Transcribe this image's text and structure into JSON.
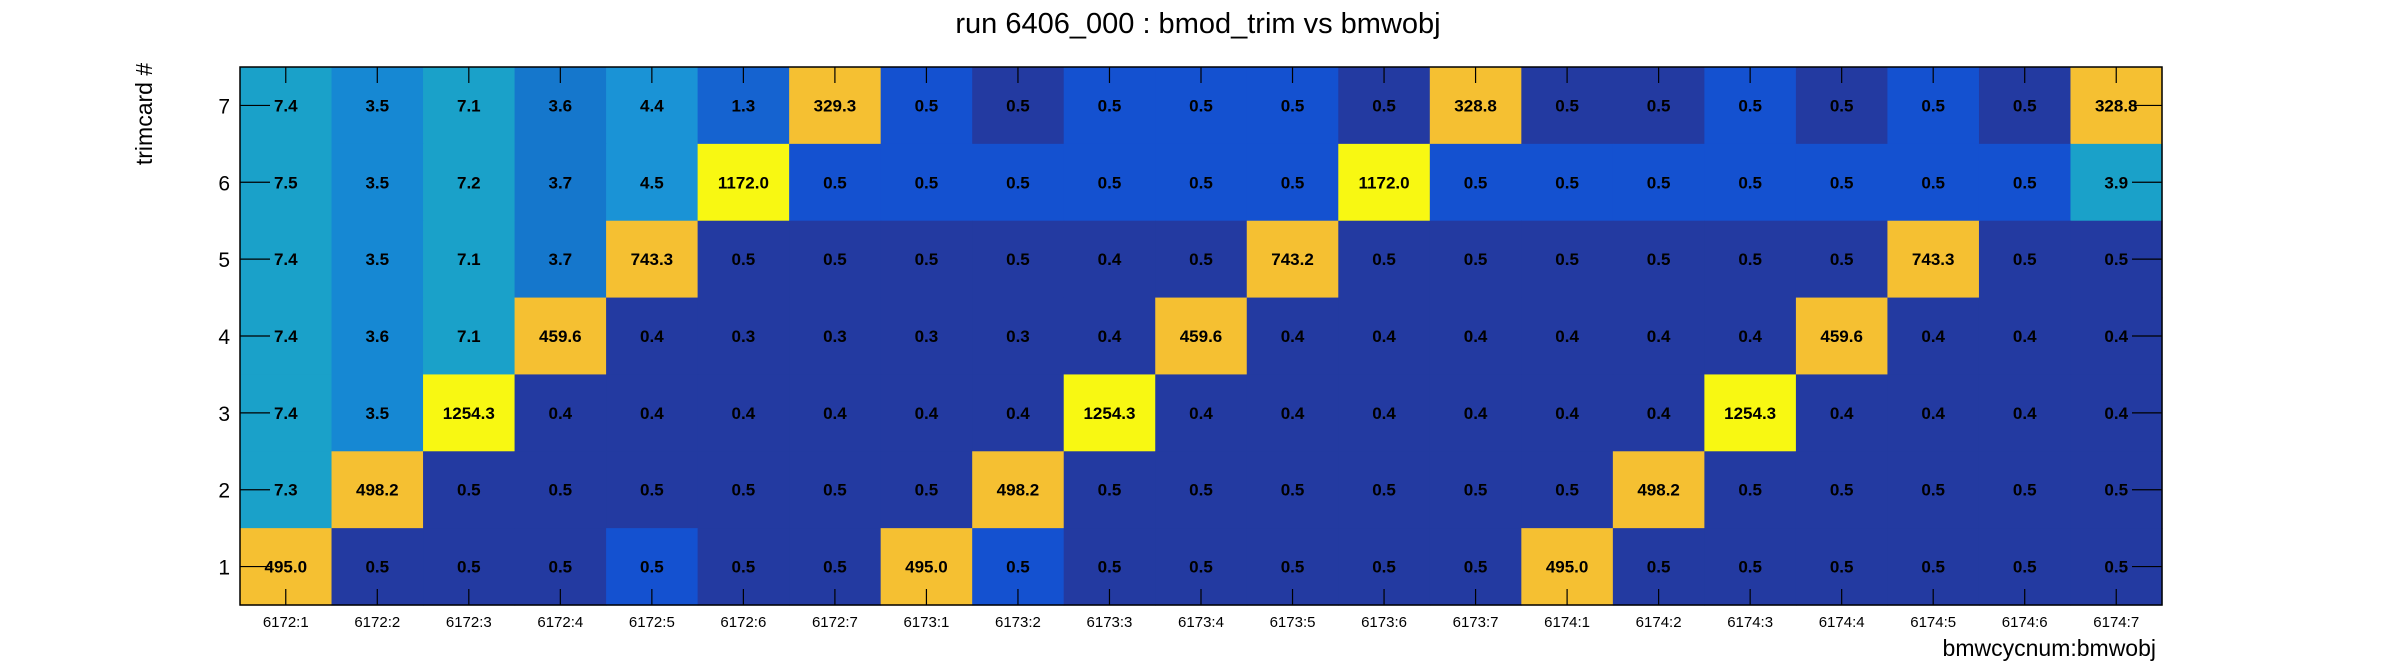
{
  "chart_data": {
    "type": "heatmap",
    "title": "run 6406_000 : bmod_trim vs bmwobj",
    "xlabel": "bmwcycnum:bmwobj",
    "ylabel": "trimcard #",
    "x_categories": [
      "6172:1",
      "6172:2",
      "6172:3",
      "6172:4",
      "6172:5",
      "6172:6",
      "6172:7",
      "6173:1",
      "6173:2",
      "6173:3",
      "6173:4",
      "6173:5",
      "6173:6",
      "6173:7",
      "6174:1",
      "6174:2",
      "6174:3",
      "6174:4",
      "6174:5",
      "6174:6",
      "6174:7"
    ],
    "y_categories": [
      "1",
      "2",
      "3",
      "4",
      "5",
      "6",
      "7"
    ],
    "rows": [
      {
        "y": "7",
        "values": [
          "7.4",
          "3.5",
          "7.1",
          "3.6",
          "4.4",
          "1.3",
          "329.3",
          "0.5",
          "0.5",
          "0.5",
          "0.5",
          "0.5",
          "0.5",
          "328.8",
          "0.5",
          "0.5",
          "0.5",
          "0.5",
          "0.5",
          "0.5",
          "328.8"
        ]
      },
      {
        "y": "6",
        "values": [
          "7.5",
          "3.5",
          "7.2",
          "3.7",
          "4.5",
          "1172.0",
          "0.5",
          "0.5",
          "0.5",
          "0.5",
          "0.5",
          "0.5",
          "1172.0",
          "0.5",
          "0.5",
          "0.5",
          "0.5",
          "0.5",
          "0.5",
          "0.5",
          "3.9"
        ]
      },
      {
        "y": "5",
        "values": [
          "7.4",
          "3.5",
          "7.1",
          "3.7",
          "743.3",
          "0.5",
          "0.5",
          "0.5",
          "0.5",
          "0.4",
          "0.5",
          "743.2",
          "0.5",
          "0.5",
          "0.5",
          "0.5",
          "0.5",
          "0.5",
          "743.3",
          "0.5",
          "0.5"
        ]
      },
      {
        "y": "4",
        "values": [
          "7.4",
          "3.6",
          "7.1",
          "459.6",
          "0.4",
          "0.3",
          "0.3",
          "0.3",
          "0.3",
          "0.4",
          "459.6",
          "0.4",
          "0.4",
          "0.4",
          "0.4",
          "0.4",
          "0.4",
          "459.6",
          "0.4",
          "0.4",
          "0.4"
        ]
      },
      {
        "y": "3",
        "values": [
          "7.4",
          "3.5",
          "1254.3",
          "0.4",
          "0.4",
          "0.4",
          "0.4",
          "0.4",
          "0.4",
          "1254.3",
          "0.4",
          "0.4",
          "0.4",
          "0.4",
          "0.4",
          "0.4",
          "1254.3",
          "0.4",
          "0.4",
          "0.4",
          "0.4"
        ]
      },
      {
        "y": "2",
        "values": [
          "7.3",
          "498.2",
          "0.5",
          "0.5",
          "0.5",
          "0.5",
          "0.5",
          "0.5",
          "498.2",
          "0.5",
          "0.5",
          "0.5",
          "0.5",
          "0.5",
          "0.5",
          "498.2",
          "0.5",
          "0.5",
          "0.5",
          "0.5",
          "0.5"
        ]
      },
      {
        "y": "1",
        "values": [
          "495.0",
          "0.5",
          "0.5",
          "0.5",
          "0.5",
          "0.5",
          "0.5",
          "495.0",
          "0.5",
          "0.5",
          "0.5",
          "0.5",
          "0.5",
          "0.5",
          "495.0",
          "0.5",
          "0.5",
          "0.5",
          "0.5",
          "0.5",
          "0.5"
        ]
      }
    ],
    "cell_colors": [
      [
        "#1aa1c9",
        "#1688d3",
        "#1aa1c9",
        "#1577cc",
        "#1a93d6",
        "#1563d0",
        "#f5c032",
        "#1451d0",
        "#233aa1",
        "#1451d0",
        "#1451d0",
        "#1451d0",
        "#233aa1",
        "#f5c032",
        "#233aa1",
        "#233aa1",
        "#1451d0",
        "#233aa1",
        "#1451d0",
        "#233aa1",
        "#f5c032"
      ],
      [
        "#1aa1c9",
        "#1688d3",
        "#1aa1c9",
        "#1577cc",
        "#1a93d6",
        "#f8f812",
        "#1451d0",
        "#1451d0",
        "#1451d0",
        "#1451d0",
        "#1451d0",
        "#1451d0",
        "#f8f812",
        "#1451d0",
        "#1451d0",
        "#1451d0",
        "#1451d0",
        "#1451d0",
        "#1451d0",
        "#1451d0",
        "#1aa1c9"
      ],
      [
        "#1aa1c9",
        "#1688d3",
        "#1aa1c9",
        "#1577cc",
        "#f5c032",
        "#233aa1",
        "#233aa1",
        "#233aa1",
        "#233aa1",
        "#233aa1",
        "#233aa1",
        "#f5c032",
        "#233aa1",
        "#233aa1",
        "#233aa1",
        "#233aa1",
        "#233aa1",
        "#233aa1",
        "#f5c032",
        "#233aa1",
        "#233aa1"
      ],
      [
        "#1aa1c9",
        "#1688d3",
        "#1aa1c9",
        "#f5c032",
        "#233aa1",
        "#233aa1",
        "#233aa1",
        "#233aa1",
        "#233aa1",
        "#233aa1",
        "#f5c032",
        "#233aa1",
        "#233aa1",
        "#233aa1",
        "#233aa1",
        "#233aa1",
        "#233aa1",
        "#f5c032",
        "#233aa1",
        "#233aa1",
        "#233aa1"
      ],
      [
        "#1aa1c9",
        "#1688d3",
        "#f8f812",
        "#233aa1",
        "#233aa1",
        "#233aa1",
        "#233aa1",
        "#233aa1",
        "#233aa1",
        "#f8f812",
        "#233aa1",
        "#233aa1",
        "#233aa1",
        "#233aa1",
        "#233aa1",
        "#233aa1",
        "#f8f812",
        "#233aa1",
        "#233aa1",
        "#233aa1",
        "#233aa1"
      ],
      [
        "#1aa1c9",
        "#f5c032",
        "#233aa1",
        "#233aa1",
        "#233aa1",
        "#233aa1",
        "#233aa1",
        "#233aa1",
        "#f5c032",
        "#233aa1",
        "#233aa1",
        "#233aa1",
        "#233aa1",
        "#233aa1",
        "#233aa1",
        "#f5c032",
        "#233aa1",
        "#233aa1",
        "#233aa1",
        "#233aa1",
        "#233aa1"
      ],
      [
        "#f5c032",
        "#233aa1",
        "#233aa1",
        "#233aa1",
        "#1451d0",
        "#233aa1",
        "#233aa1",
        "#f5c032",
        "#1451d0",
        "#233aa1",
        "#233aa1",
        "#233aa1",
        "#233aa1",
        "#233aa1",
        "#f5c032",
        "#233aa1",
        "#233aa1",
        "#233aa1",
        "#233aa1",
        "#233aa1",
        "#233aa1"
      ]
    ],
    "grid": false
  }
}
